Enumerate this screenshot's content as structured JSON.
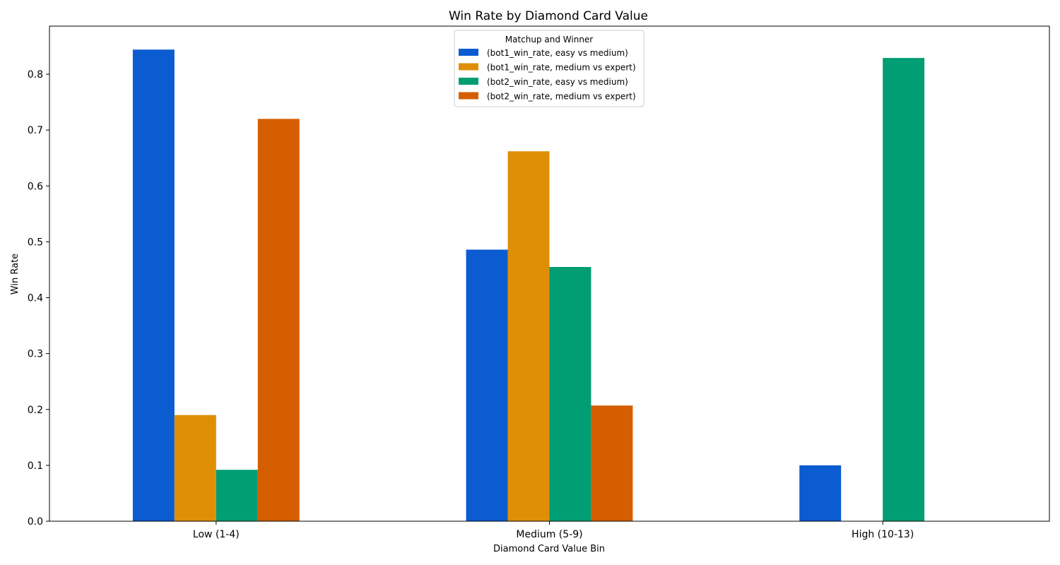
{
  "chart_data": {
    "type": "bar",
    "title": "Win Rate by Diamond Card Value",
    "xlabel": "Diamond Card Value Bin",
    "ylabel": "Win Rate",
    "categories": [
      "Low (1-4)",
      "Medium (5-9)",
      "High (10-13)"
    ],
    "ylim": [
      0,
      0.886
    ],
    "yticks": [
      0.0,
      0.1,
      0.2,
      0.3,
      0.4,
      0.5,
      0.6,
      0.7,
      0.8
    ],
    "ytick_labels": [
      "0.0",
      "0.1",
      "0.2",
      "0.3",
      "0.4",
      "0.5",
      "0.6",
      "0.7",
      "0.8"
    ],
    "grid": false,
    "legend": {
      "title": "Matchup and Winner",
      "placement": "top-center"
    },
    "series": [
      {
        "name": "(bot1_win_rate, easy vs medium)",
        "color": "#0b5bd1",
        "values": [
          0.844,
          0.486,
          0.1
        ]
      },
      {
        "name": "(bot1_win_rate, medium vs expert)",
        "color": "#de8f05",
        "values": [
          0.19,
          0.662,
          null
        ]
      },
      {
        "name": "(bot2_win_rate, easy vs medium)",
        "color": "#029e73",
        "values": [
          0.092,
          0.455,
          0.829
        ]
      },
      {
        "name": "(bot2_win_rate, medium vs expert)",
        "color": "#d55e00",
        "values": [
          0.72,
          0.207,
          null
        ]
      }
    ]
  }
}
